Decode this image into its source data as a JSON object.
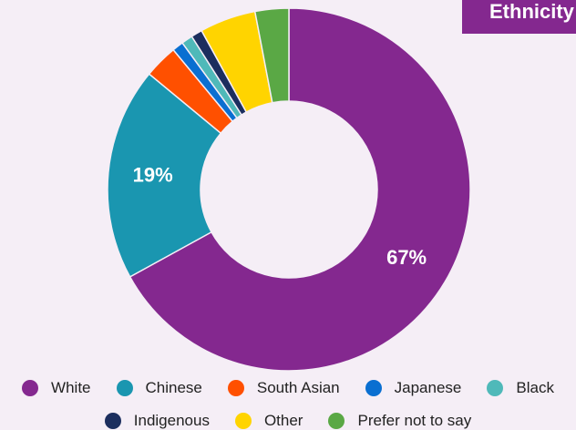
{
  "chart_data": {
    "type": "donut",
    "title": "Ethnicity",
    "categories": [
      "White",
      "Chinese",
      "South Asian",
      "Japanese",
      "Black",
      "Indigenous",
      "Other",
      "Prefer not to say"
    ],
    "values": [
      67,
      19,
      3,
      1,
      1,
      1,
      5,
      3
    ],
    "value_labels": [
      "67%",
      "19%",
      null,
      null,
      null,
      null,
      null,
      null
    ],
    "colors": [
      "#84288f",
      "#1a96b0",
      "#ff5000",
      "#0a6fd1",
      "#4fb9b9",
      "#1c2e5e",
      "#ffd400",
      "#5aa845"
    ],
    "legend": "bottom"
  }
}
